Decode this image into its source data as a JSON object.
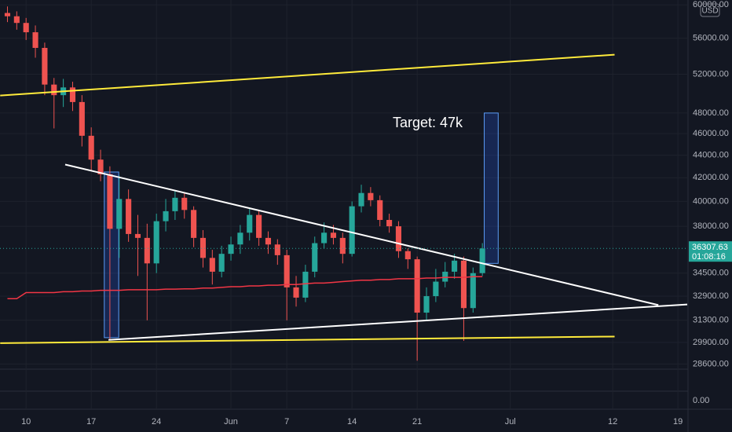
{
  "chart_data": {
    "type": "candlestick",
    "log_scale": true,
    "grid": true,
    "up_color": "#26a69a",
    "down_color": "#ef5350",
    "currency": "USD",
    "annotation": "Target: 47k",
    "last_price": 36307.63,
    "countdown": "01:08:16",
    "xlim": [
      -2.8,
      71
    ],
    "xticks": [
      {
        "value": 0,
        "label": "10"
      },
      {
        "value": 7,
        "label": "17"
      },
      {
        "value": 14,
        "label": "24"
      },
      {
        "value": 22,
        "label": "Jun"
      },
      {
        "value": 28,
        "label": "7"
      },
      {
        "value": 35,
        "label": "14"
      },
      {
        "value": 42,
        "label": "21"
      },
      {
        "value": 52,
        "label": "Jul"
      },
      {
        "value": 63,
        "label": "12"
      },
      {
        "value": 70,
        "label": "19"
      }
    ],
    "ylim": [
      28300,
      60600
    ],
    "yticks": [
      {
        "value": 60000,
        "label": "60000.00"
      },
      {
        "value": 56000,
        "label": "56000.00"
      },
      {
        "value": 52000,
        "label": "52000.00"
      },
      {
        "value": 48000,
        "label": "48000.00"
      },
      {
        "value": 46000,
        "label": "46000.00"
      },
      {
        "value": 44000,
        "label": "44000.00"
      },
      {
        "value": 42000,
        "label": "42000.00"
      },
      {
        "value": 40000,
        "label": "40000.00"
      },
      {
        "value": 38000,
        "label": "38000.00"
      },
      {
        "value": 34500,
        "label": "34500.00"
      },
      {
        "value": 32900,
        "label": "32900.00"
      },
      {
        "value": 31300,
        "label": "31300.00"
      },
      {
        "value": 29900,
        "label": "29900.00"
      },
      {
        "value": 28600,
        "label": "28600.00"
      }
    ],
    "lower_pane_ticks": [
      {
        "value": 0,
        "label": "0.00"
      }
    ],
    "x": [
      -2,
      -1,
      0,
      1,
      2,
      3,
      4,
      5,
      6,
      7,
      8,
      9,
      10,
      11,
      12,
      13,
      14,
      15,
      16,
      17,
      18,
      19,
      20,
      21,
      22,
      23,
      24,
      25,
      26,
      27,
      28,
      29,
      30,
      31,
      32,
      33,
      34,
      35,
      36,
      37,
      38,
      39,
      40,
      41,
      42,
      43,
      44,
      45,
      46,
      47,
      48,
      49
    ],
    "open": [
      59000,
      58600,
      57800,
      56700,
      54900,
      50900,
      49800,
      50600,
      49100,
      45800,
      43600,
      42300,
      37800,
      40200,
      37400,
      37100,
      35200,
      38400,
      39200,
      40300,
      39300,
      37100,
      35600,
      34600,
      35900,
      36600,
      37500,
      38900,
      37100,
      36600,
      35800,
      33500,
      32800,
      34600,
      36700,
      37500,
      37100,
      35900,
      39600,
      40700,
      40100,
      38500,
      38000,
      36100,
      35500,
      31800,
      32900,
      33900,
      34600,
      35400,
      32100,
      34500
    ],
    "high": [
      59800,
      59200,
      58400,
      57500,
      55500,
      51600,
      51500,
      51200,
      49800,
      46600,
      44500,
      43000,
      42200,
      41000,
      38900,
      38200,
      39000,
      40200,
      40900,
      40700,
      39600,
      37700,
      36200,
      36500,
      37200,
      38100,
      39400,
      39200,
      37600,
      37000,
      36200,
      34300,
      35100,
      37200,
      38300,
      38100,
      37500,
      40000,
      41400,
      41200,
      40500,
      39000,
      38400,
      36300,
      35700,
      33500,
      34800,
      35300,
      35900,
      35700,
      34900,
      36700
    ],
    "low": [
      57900,
      57000,
      55800,
      53800,
      49800,
      46500,
      48600,
      48200,
      44800,
      42600,
      41700,
      30100,
      35600,
      36800,
      34300,
      31300,
      34500,
      37600,
      38500,
      38600,
      36400,
      34900,
      33700,
      34200,
      35400,
      35900,
      36900,
      36500,
      35900,
      35100,
      31300,
      32200,
      32500,
      34200,
      36300,
      36600,
      35200,
      35700,
      39100,
      39600,
      38000,
      37500,
      35600,
      34800,
      28800,
      31300,
      32500,
      33500,
      34100,
      30000,
      31800,
      34300
    ],
    "close": [
      58600,
      57800,
      56700,
      54900,
      50900,
      49800,
      50600,
      49100,
      45800,
      43600,
      42300,
      37800,
      40200,
      37400,
      37100,
      35200,
      38400,
      39200,
      40300,
      39300,
      37100,
      35600,
      34600,
      35900,
      36600,
      37500,
      38900,
      37100,
      36600,
      35800,
      33500,
      32800,
      34600,
      36700,
      37500,
      37100,
      35900,
      39600,
      40700,
      40100,
      38500,
      38000,
      36100,
      35500,
      31800,
      32900,
      33900,
      34600,
      35400,
      32100,
      34500,
      36300
    ],
    "ma": {
      "color": "#f23645",
      "values": [
        32730,
        32730,
        33140,
        33140,
        33140,
        33140,
        33200,
        33200,
        33250,
        33250,
        33300,
        33300,
        33300,
        33340,
        33340,
        33340,
        33340,
        33380,
        33380,
        33400,
        33400,
        33450,
        33450,
        33500,
        33550,
        33550,
        33600,
        33600,
        33650,
        33650,
        33700,
        33700,
        33750,
        33800,
        33800,
        33850,
        33900,
        33950,
        34000,
        34000,
        34050,
        34050,
        34100,
        34100,
        34100,
        34150,
        34150,
        34200,
        34200,
        34200,
        34250,
        34250
      ]
    },
    "trend_lines": [
      {
        "color": "#ffeb3b",
        "x": [
          -2.78,
          63.2
        ],
        "y": [
          49760,
          54140
        ]
      },
      {
        "color": "#ffeb3b",
        "x": [
          -2.78,
          63.2
        ],
        "y": [
          29860,
          30270
        ]
      },
      {
        "color": "#ffffff",
        "x": [
          4.2,
          67.9
        ],
        "y": [
          43160,
          32300
        ]
      },
      {
        "color": "#ffffff",
        "x": [
          8.85,
          71
        ],
        "y": [
          30060,
          32340
        ]
      }
    ],
    "boxes": [
      {
        "color": "#2962ff",
        "x": [
          8.4,
          9.95
        ],
        "y": [
          30200,
          42500
        ]
      },
      {
        "color": "#2962ff",
        "x": [
          49.2,
          50.7
        ],
        "y": [
          35200,
          48000
        ]
      }
    ]
  }
}
